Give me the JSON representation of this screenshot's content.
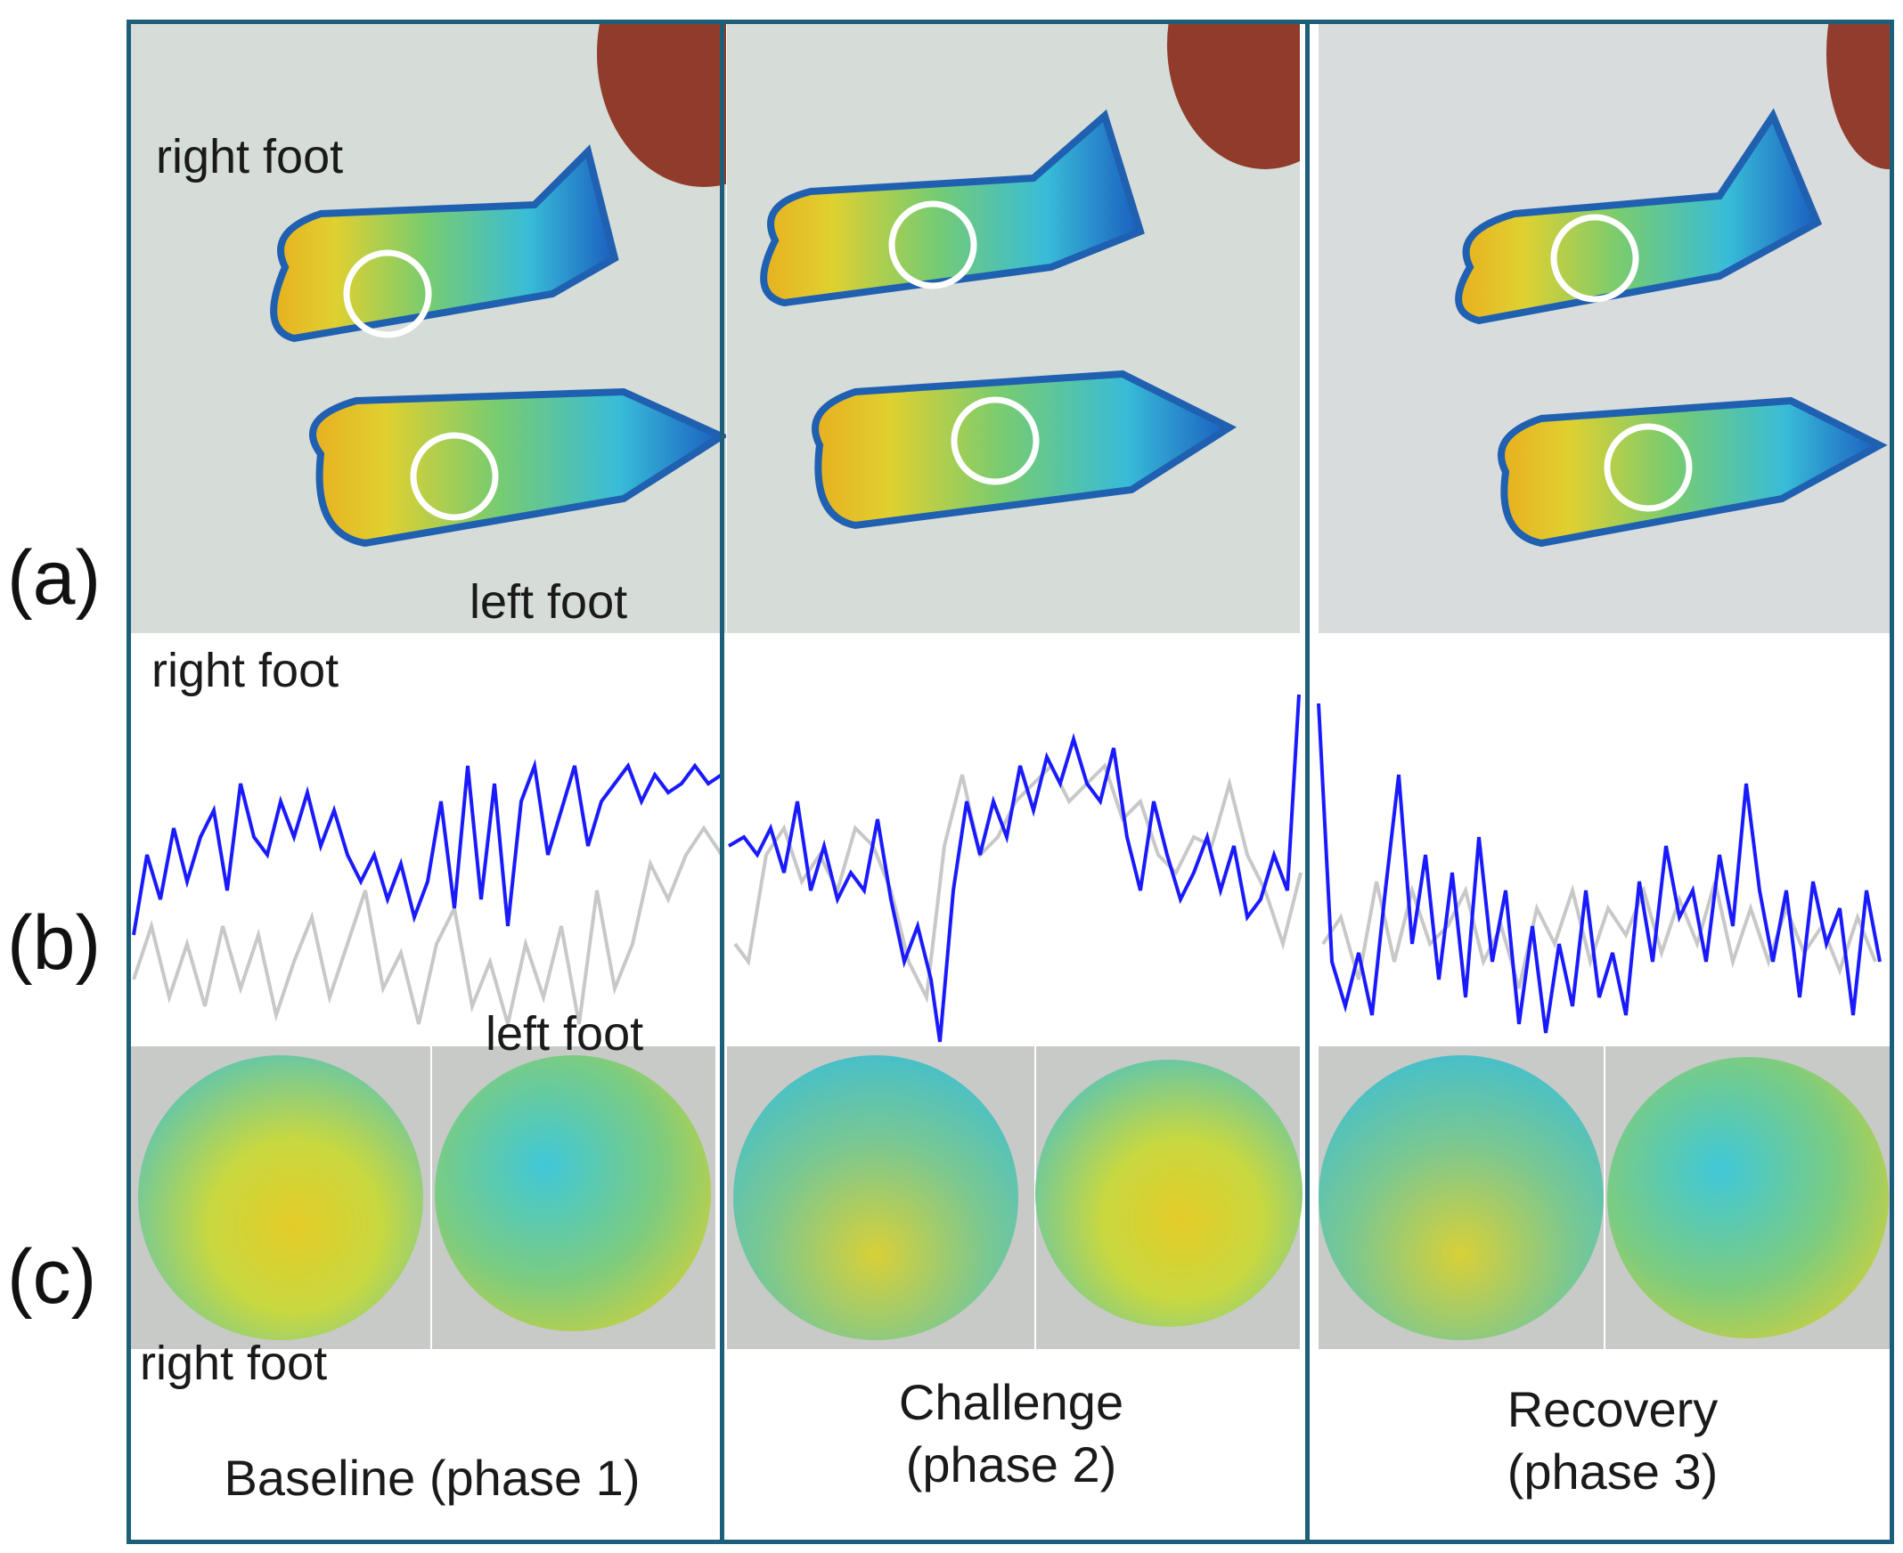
{
  "row_labels": {
    "a": "(a)",
    "b": "(b)",
    "c": "(c)"
  },
  "labels": {
    "thermal_right": "right foot",
    "thermal_left": "left foot",
    "trace_right": "right foot",
    "trace_left": "left foot",
    "map_right": "right foot"
  },
  "phases": {
    "p1": "Baseline (phase 1)",
    "p2_line1": "Challenge",
    "p2_line2": "(phase 2)",
    "p3_line1": "Recovery",
    "p3_line2": "(phase 3)"
  },
  "colors": {
    "frame": "#1d5e7a",
    "right_trace": "#1a1aff",
    "left_trace": "#c8c8c8"
  }
}
